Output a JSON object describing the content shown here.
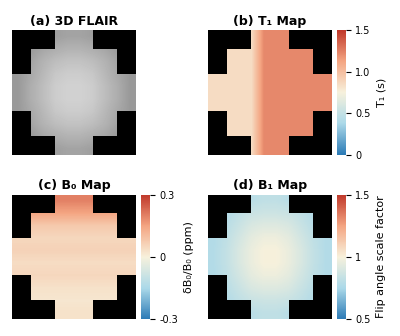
{
  "chart_data": [
    {
      "type": "heatmap",
      "title": "(a) 3D FLAIR",
      "tick_labels": false,
      "clim": [
        0,
        1
      ],
      "cells": [
        [
          null,
          null,
          null,
          0.62,
          0.64,
          0.64,
          0.62,
          null,
          null,
          null
        ],
        [
          null,
          0.6,
          0.65,
          0.68,
          0.7,
          0.7,
          0.68,
          0.65,
          0.6,
          null
        ],
        [
          null,
          0.64,
          0.7,
          0.74,
          0.76,
          0.76,
          0.74,
          0.7,
          0.64,
          null
        ],
        [
          0.6,
          0.66,
          0.72,
          0.78,
          0.8,
          0.8,
          0.78,
          0.72,
          0.66,
          0.6
        ],
        [
          0.6,
          0.68,
          0.74,
          0.8,
          0.82,
          0.82,
          0.8,
          0.74,
          0.68,
          0.6
        ],
        [
          0.6,
          0.68,
          0.74,
          0.8,
          0.82,
          0.82,
          0.8,
          0.74,
          0.68,
          0.6
        ],
        [
          0.6,
          0.66,
          0.72,
          0.78,
          0.8,
          0.8,
          0.78,
          0.72,
          0.66,
          0.6
        ],
        [
          null,
          0.64,
          0.7,
          0.74,
          0.76,
          0.76,
          0.74,
          0.7,
          0.64,
          null
        ],
        [
          null,
          0.6,
          0.65,
          0.68,
          0.7,
          0.7,
          0.68,
          0.65,
          0.6,
          null
        ],
        [
          null,
          null,
          null,
          0.62,
          0.64,
          0.64,
          0.62,
          null,
          null,
          null
        ]
      ]
    },
    {
      "type": "heatmap",
      "title": "(b) T₁ Map",
      "tick_labels": false,
      "colorbar_label": "T₁ (s)",
      "clim": [
        0,
        1.5
      ],
      "cticks": [
        0,
        0.5,
        {
          "value": 1,
          "label": "1.0"
        },
        1.5
      ],
      "cells": [
        [
          null,
          null,
          null,
          0.85,
          1.22,
          1.22,
          1.22,
          null,
          null,
          null
        ],
        [
          null,
          0.85,
          0.85,
          0.85,
          1.22,
          1.22,
          1.22,
          1.22,
          1.22,
          null
        ],
        [
          null,
          0.85,
          0.85,
          0.85,
          1.22,
          1.22,
          1.22,
          1.22,
          1.22,
          null
        ],
        [
          0.85,
          0.85,
          0.85,
          0.85,
          1.22,
          1.22,
          1.22,
          1.22,
          1.22,
          1.22
        ],
        [
          0.85,
          0.85,
          0.85,
          0.85,
          1.22,
          1.22,
          1.22,
          1.22,
          1.22,
          1.22
        ],
        [
          0.85,
          0.85,
          0.85,
          0.85,
          1.22,
          1.22,
          1.22,
          1.22,
          1.22,
          1.22
        ],
        [
          0.85,
          0.85,
          0.85,
          0.85,
          1.22,
          1.22,
          1.22,
          1.22,
          1.22,
          1.22
        ],
        [
          null,
          0.85,
          0.85,
          0.85,
          1.22,
          1.22,
          1.22,
          1.22,
          1.22,
          null
        ],
        [
          null,
          0.85,
          0.85,
          0.85,
          1.22,
          1.22,
          1.22,
          1.22,
          1.22,
          null
        ],
        [
          null,
          null,
          null,
          0.85,
          1.22,
          1.22,
          1.22,
          null,
          null,
          null
        ]
      ]
    },
    {
      "type": "heatmap",
      "title": "(c) B₀ Map",
      "tick_labels": false,
      "colorbar_label": "δB₀/B₀ (ppm)",
      "clim": [
        -0.3,
        0.3
      ],
      "cticks": [
        0.3,
        0,
        -0.3
      ],
      "cells": [
        [
          null,
          null,
          null,
          0.2,
          0.2,
          0.2,
          0.2,
          null,
          null,
          null
        ],
        [
          null,
          0.15,
          0.15,
          0.15,
          0.15,
          0.15,
          0.15,
          0.15,
          0.15,
          null
        ],
        [
          null,
          0.08,
          0.08,
          0.08,
          0.08,
          0.08,
          0.08,
          0.08,
          0.08,
          null
        ],
        [
          0.05,
          0.05,
          0.05,
          0.05,
          0.05,
          0.05,
          0.05,
          0.05,
          0.05,
          0.05
        ],
        [
          0.06,
          0.06,
          0.06,
          0.06,
          0.06,
          0.06,
          0.06,
          0.06,
          0.06,
          0.06
        ],
        [
          0.04,
          0.04,
          0.04,
          0.04,
          0.04,
          0.04,
          0.04,
          0.04,
          0.04,
          0.04
        ],
        [
          0.05,
          0.05,
          0.05,
          0.05,
          0.05,
          0.05,
          0.05,
          0.05,
          0.05,
          0.05
        ],
        [
          null,
          0.03,
          0.03,
          0.03,
          0.03,
          0.03,
          0.03,
          0.03,
          0.03,
          null
        ],
        [
          null,
          0.02,
          0.02,
          0.02,
          0.02,
          0.02,
          0.02,
          0.02,
          0.02,
          null
        ],
        [
          null,
          null,
          null,
          0.03,
          0.03,
          0.03,
          0.03,
          null,
          null,
          null
        ]
      ]
    },
    {
      "type": "heatmap",
      "title": "(d) B₁ Map",
      "tick_labels": false,
      "colorbar_label": "Flip angle scale factor",
      "clim": [
        0.5,
        1.5
      ],
      "cticks": [
        0.5,
        1,
        1.5
      ],
      "cells": [
        [
          null,
          null,
          null,
          0.8,
          0.82,
          0.82,
          0.8,
          null,
          null,
          null
        ],
        [
          null,
          0.78,
          0.82,
          0.85,
          0.86,
          0.86,
          0.85,
          0.82,
          0.78,
          null
        ],
        [
          null,
          0.8,
          0.85,
          0.9,
          0.92,
          0.92,
          0.9,
          0.85,
          0.8,
          null
        ],
        [
          0.78,
          0.82,
          0.88,
          0.94,
          0.97,
          0.97,
          0.94,
          0.88,
          0.82,
          0.78
        ],
        [
          0.78,
          0.83,
          0.9,
          0.96,
          1.0,
          1.0,
          0.96,
          0.9,
          0.83,
          0.78
        ],
        [
          0.78,
          0.83,
          0.9,
          0.96,
          1.0,
          1.0,
          0.96,
          0.9,
          0.83,
          0.78
        ],
        [
          0.78,
          0.82,
          0.88,
          0.94,
          0.97,
          0.97,
          0.94,
          0.88,
          0.82,
          0.78
        ],
        [
          null,
          0.8,
          0.85,
          0.9,
          0.92,
          0.92,
          0.9,
          0.85,
          0.8,
          null
        ],
        [
          null,
          0.78,
          0.82,
          0.85,
          0.86,
          0.86,
          0.85,
          0.82,
          0.78,
          null
        ],
        [
          null,
          null,
          null,
          0.8,
          0.82,
          0.82,
          0.8,
          null,
          null,
          null
        ]
      ]
    }
  ]
}
